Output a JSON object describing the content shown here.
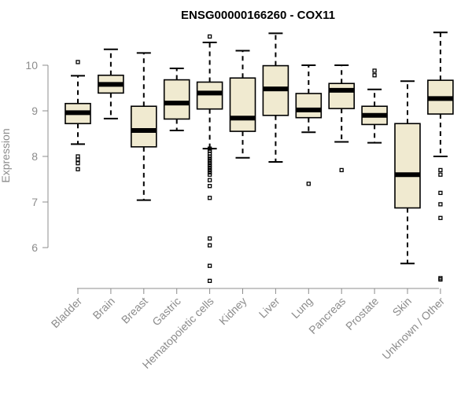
{
  "chart_data": {
    "type": "box",
    "title": "ENSG00000166260 - COX11",
    "xlabel": "",
    "ylabel": "Expression",
    "yticks": [
      6,
      7,
      8,
      9,
      10
    ],
    "ylim": [
      5.1,
      10.9
    ],
    "grid": false,
    "box_color": "#f0ead0",
    "categories": [
      "Bladder",
      "Brain",
      "Breast",
      "Gastric",
      "Hematopoietic cells",
      "Kidney",
      "Liver",
      "Lung",
      "Pancreas",
      "Prostate",
      "Skin",
      "Unknown / Other"
    ],
    "boxes": [
      {
        "whisker_low": 8.27,
        "q1": 8.72,
        "median": 8.96,
        "q3": 9.16,
        "whisker_high": 9.77,
        "outliers": [
          10.07,
          8.0,
          7.93,
          7.85,
          7.72
        ]
      },
      {
        "whisker_low": 8.83,
        "q1": 9.39,
        "median": 9.58,
        "q3": 9.78,
        "whisker_high": 10.35,
        "outliers": []
      },
      {
        "whisker_low": 7.04,
        "q1": 8.21,
        "median": 8.57,
        "q3": 9.1,
        "whisker_high": 10.27,
        "outliers": []
      },
      {
        "whisker_low": 8.57,
        "q1": 8.82,
        "median": 9.17,
        "q3": 9.68,
        "whisker_high": 9.93,
        "outliers": []
      },
      {
        "whisker_low": 8.17,
        "q1": 9.04,
        "median": 9.39,
        "q3": 9.63,
        "whisker_high": 10.5,
        "outliers": [
          10.63,
          8.17,
          8.12,
          8.06,
          8.0,
          7.95,
          7.9,
          7.85,
          7.8,
          7.75,
          7.7,
          7.65,
          7.6,
          7.48,
          7.35,
          7.09,
          6.2,
          6.05,
          5.6,
          5.27
        ]
      },
      {
        "whisker_low": 7.97,
        "q1": 8.55,
        "median": 8.84,
        "q3": 9.72,
        "whisker_high": 10.32,
        "outliers": []
      },
      {
        "whisker_low": 7.88,
        "q1": 8.9,
        "median": 9.48,
        "q3": 9.99,
        "whisker_high": 10.7,
        "outliers": []
      },
      {
        "whisker_low": 8.53,
        "q1": 8.85,
        "median": 9.02,
        "q3": 9.38,
        "whisker_high": 10.0,
        "outliers": [
          7.4
        ]
      },
      {
        "whisker_low": 8.32,
        "q1": 9.05,
        "median": 9.45,
        "q3": 9.6,
        "whisker_high": 10.0,
        "outliers": [
          7.7
        ]
      },
      {
        "whisker_low": 8.3,
        "q1": 8.7,
        "median": 8.9,
        "q3": 9.1,
        "whisker_high": 9.47,
        "outliers": [
          9.88,
          9.78
        ]
      },
      {
        "whisker_low": 5.65,
        "q1": 6.87,
        "median": 7.6,
        "q3": 8.72,
        "whisker_high": 9.65,
        "outliers": []
      },
      {
        "whisker_low": 8.0,
        "q1": 8.93,
        "median": 9.27,
        "q3": 9.67,
        "whisker_high": 10.72,
        "outliers": [
          7.7,
          7.6,
          7.2,
          6.95,
          6.65,
          5.33,
          5.3
        ]
      }
    ]
  }
}
